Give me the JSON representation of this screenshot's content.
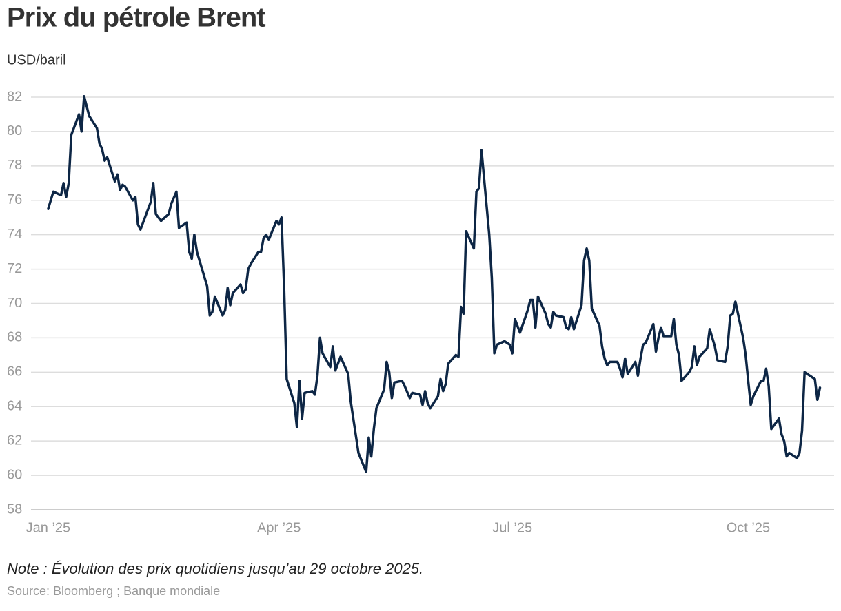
{
  "chart_data": {
    "type": "line",
    "title": "Prix du pétrole Brent",
    "subtitle": "USD/baril",
    "note": "Note : Évolution des prix quotidiens jusqu’au 29 octobre 2025.",
    "source": "Source: Bloomberg ; Banque mondiale",
    "x": [
      0,
      2,
      5,
      6,
      7,
      8,
      9,
      12,
      13,
      14,
      16,
      19,
      20,
      21,
      22,
      23,
      26,
      27,
      28,
      29,
      30,
      33,
      34,
      35,
      36,
      40,
      41,
      42,
      44,
      47,
      48,
      50,
      51,
      54,
      55,
      56,
      57,
      58,
      62,
      63,
      64,
      65,
      68,
      69,
      70,
      71,
      72,
      75,
      76,
      77,
      78,
      79,
      82,
      83,
      84,
      85,
      86,
      89,
      90,
      91,
      92,
      93,
      96,
      97,
      98,
      99,
      100,
      103,
      104,
      105,
      106,
      107,
      110,
      111,
      112,
      114,
      117,
      118,
      121,
      124,
      125,
      126,
      127,
      128,
      131,
      132,
      133,
      134,
      135,
      138,
      139,
      141,
      142,
      145,
      146,
      147,
      148,
      149,
      152,
      153,
      154,
      155,
      156,
      159,
      160,
      161,
      162,
      163,
      166,
      167,
      168,
      169,
      172,
      173,
      174,
      175,
      178,
      180,
      181,
      182,
      184,
      187,
      188,
      189,
      190,
      191,
      194,
      195,
      196,
      197,
      198,
      201,
      202,
      203,
      204,
      205,
      208,
      209,
      210,
      211,
      212,
      215,
      216,
      217,
      218,
      219,
      222,
      223,
      224,
      225,
      226,
      229,
      230,
      231,
      232,
      233,
      236,
      237,
      238,
      239,
      240,
      243,
      244,
      245,
      246,
      247,
      250,
      251,
      252,
      253,
      254,
      257,
      258,
      260,
      261,
      264,
      265,
      266,
      267,
      268,
      271,
      272,
      273,
      274,
      275,
      278,
      279,
      280,
      281,
      282,
      285,
      286,
      287,
      288,
      289,
      292,
      293,
      294,
      295,
      299,
      300,
      301
    ],
    "series": [
      {
        "name": "Brent",
        "color": "#0d2645",
        "values": [
          75.5,
          76.5,
          76.3,
          77.0,
          76.2,
          77.0,
          79.8,
          81.0,
          80.0,
          82.05,
          80.9,
          80.2,
          79.3,
          79.0,
          78.3,
          78.5,
          77.1,
          77.5,
          76.6,
          76.9,
          76.8,
          76.0,
          76.2,
          74.6,
          74.3,
          75.9,
          77.0,
          75.2,
          74.8,
          75.2,
          75.8,
          76.5,
          74.4,
          74.7,
          73.0,
          72.6,
          74.0,
          73.0,
          71.0,
          69.3,
          69.5,
          70.4,
          69.3,
          69.6,
          70.9,
          69.9,
          70.6,
          71.1,
          70.6,
          70.8,
          72.0,
          72.3,
          73.0,
          73.0,
          73.8,
          74.0,
          73.7,
          74.8,
          74.6,
          75.0,
          71.0,
          65.6,
          64.2,
          62.8,
          65.5,
          63.3,
          64.8,
          64.9,
          64.7,
          65.8,
          68.0,
          67.1,
          66.3,
          67.5,
          66.1,
          66.9,
          65.9,
          64.3,
          61.3,
          60.2,
          62.2,
          61.1,
          62.7,
          63.9,
          65.0,
          66.6,
          66.0,
          64.5,
          65.4,
          65.5,
          65.2,
          64.5,
          64.8,
          64.7,
          64.1,
          64.9,
          64.2,
          63.9,
          64.6,
          65.6,
          64.9,
          65.3,
          66.5,
          67.0,
          66.9,
          69.8,
          69.4,
          74.2,
          73.2,
          76.5,
          76.7,
          78.9,
          74.0,
          71.5,
          67.1,
          67.6,
          67.8,
          67.6,
          67.1,
          69.1,
          68.3,
          69.6,
          70.2,
          70.2,
          68.6,
          70.4,
          69.4,
          68.8,
          68.6,
          69.5,
          69.3,
          69.2,
          68.6,
          68.5,
          69.2,
          68.5,
          69.9,
          72.5,
          73.2,
          72.5,
          69.7,
          68.7,
          67.5,
          66.8,
          66.4,
          66.6,
          66.6,
          66.2,
          65.7,
          66.8,
          65.9,
          66.6,
          65.8,
          66.8,
          67.6,
          67.7,
          68.8,
          67.2,
          68.0,
          68.6,
          68.1,
          68.1,
          69.1,
          67.6,
          67.0,
          65.5,
          66.0,
          66.3,
          67.5,
          66.4,
          66.9,
          67.4,
          68.5,
          67.5,
          66.7,
          66.6,
          67.5,
          69.3,
          69.4,
          70.1,
          68.0,
          67.0,
          65.5,
          64.1,
          64.6,
          65.5,
          65.5,
          66.2,
          65.2,
          62.7,
          63.3,
          62.4,
          62.0,
          61.1,
          61.3,
          61.0,
          61.3,
          62.6,
          66.0,
          65.6,
          64.4,
          65.1
        ]
      }
    ],
    "xlim": [
      -6.7,
      306.5
    ],
    "xticks": [
      {
        "value": 0,
        "label": "Jan ’25"
      },
      {
        "value": 90,
        "label": "Apr ’25"
      },
      {
        "value": 181,
        "label": "Jul ’25"
      },
      {
        "value": 273,
        "label": "Oct ’25"
      }
    ],
    "ylim": [
      58,
      82
    ],
    "yticks": [
      58,
      60,
      62,
      64,
      66,
      68,
      70,
      72,
      74,
      76,
      78,
      80,
      82
    ],
    "grid": true
  }
}
